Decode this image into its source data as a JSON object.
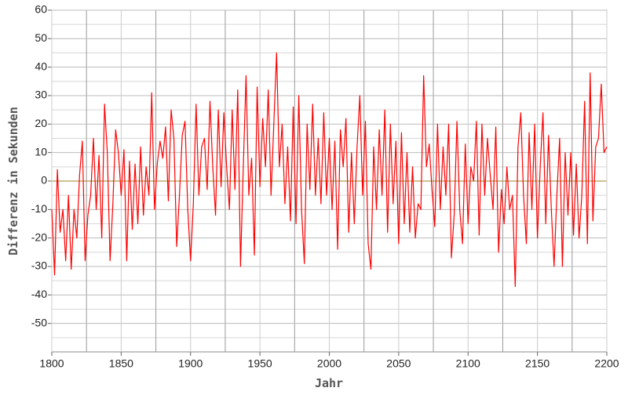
{
  "chart_data": {
    "type": "line",
    "x_label": "Jahr",
    "y_label": "Differenz in Sekunden",
    "xlim": [
      1800,
      2200
    ],
    "xticks": [
      1800,
      1850,
      1900,
      1950,
      2000,
      2050,
      2100,
      2150,
      2200
    ],
    "xminor": [
      1825,
      1875,
      1925,
      1975,
      2025,
      2075,
      2125,
      2175
    ],
    "ylim": [
      -60,
      60
    ],
    "yticks": [
      60,
      50,
      40,
      30,
      20,
      10,
      0,
      -10,
      -20,
      -30,
      -40,
      -50
    ],
    "yminor": [
      55,
      45,
      35,
      25,
      15,
      5,
      -5,
      -15,
      -25,
      -35,
      -45,
      -55
    ],
    "grid": true,
    "zero_line_color": "#a08020",
    "series": [
      {
        "color": "#ff0000",
        "x": [
          1800,
          1802,
          1804,
          1806,
          1808,
          1810,
          1812,
          1814,
          1816,
          1818,
          1820,
          1822,
          1824,
          1826,
          1828,
          1830,
          1832,
          1834,
          1836,
          1838,
          1840,
          1842,
          1844,
          1846,
          1848,
          1850,
          1852,
          1854,
          1856,
          1858,
          1860,
          1862,
          1864,
          1866,
          1868,
          1870,
          1872,
          1874,
          1876,
          1878,
          1880,
          1882,
          1884,
          1886,
          1888,
          1890,
          1892,
          1894,
          1896,
          1898,
          1900,
          1902,
          1904,
          1906,
          1908,
          1910,
          1912,
          1914,
          1916,
          1918,
          1920,
          1922,
          1924,
          1926,
          1928,
          1930,
          1932,
          1934,
          1936,
          1938,
          1940,
          1942,
          1944,
          1946,
          1948,
          1950,
          1952,
          1954,
          1956,
          1958,
          1960,
          1962,
          1964,
          1966,
          1968,
          1970,
          1972,
          1974,
          1976,
          1978,
          1980,
          1982,
          1984,
          1986,
          1988,
          1990,
          1992,
          1994,
          1996,
          1998,
          2000,
          2002,
          2004,
          2006,
          2008,
          2010,
          2012,
          2014,
          2016,
          2018,
          2020,
          2022,
          2024,
          2026,
          2028,
          2030,
          2032,
          2034,
          2036,
          2038,
          2040,
          2042,
          2044,
          2046,
          2048,
          2050,
          2052,
          2054,
          2056,
          2058,
          2060,
          2062,
          2064,
          2066,
          2068,
          2070,
          2072,
          2074,
          2076,
          2078,
          2080,
          2082,
          2084,
          2086,
          2088,
          2090,
          2092,
          2094,
          2096,
          2098,
          2100,
          2102,
          2104,
          2106,
          2108,
          2110,
          2112,
          2114,
          2116,
          2118,
          2120,
          2122,
          2124,
          2126,
          2128,
          2130,
          2132,
          2134,
          2136,
          2138,
          2140,
          2142,
          2144,
          2146,
          2148,
          2150,
          2152,
          2154,
          2156,
          2158,
          2160,
          2162,
          2164,
          2166,
          2168,
          2170,
          2172,
          2174,
          2176,
          2178,
          2180,
          2182,
          2184,
          2186,
          2188,
          2190,
          2192,
          2194,
          2196,
          2198,
          2200
        ],
        "values": [
          -10,
          -33,
          4,
          -18,
          -10,
          -28,
          -5,
          -31,
          -10,
          -20,
          2,
          14,
          -28,
          -12,
          -5,
          15,
          -10,
          9,
          -20,
          27,
          10,
          -28,
          -8,
          18,
          10,
          -5,
          11,
          -28,
          7,
          -17,
          6,
          -15,
          12,
          -12,
          5,
          -5,
          31,
          -10,
          6,
          14,
          8,
          19,
          -7,
          25,
          15,
          -23,
          -5,
          16,
          21,
          -10,
          -28,
          -8,
          27,
          -5,
          12,
          15,
          -3,
          28,
          5,
          -12,
          25,
          -2,
          24,
          5,
          -10,
          25,
          -3,
          32,
          -30,
          5,
          37,
          -5,
          8,
          -26,
          33,
          -2,
          22,
          5,
          32,
          -5,
          20,
          45,
          5,
          20,
          -8,
          12,
          -14,
          26,
          -15,
          30,
          -10,
          -29,
          20,
          -3,
          27,
          -5,
          15,
          -8,
          24,
          -5,
          15,
          -10,
          14,
          -24,
          18,
          5,
          22,
          -18,
          10,
          -15,
          12,
          30,
          -5,
          21,
          -22,
          -31,
          12,
          -10,
          18,
          -5,
          25,
          -18,
          20,
          -8,
          14,
          -22,
          17,
          -15,
          10,
          -18,
          5,
          -20,
          -8,
          -10,
          37,
          5,
          13,
          -3,
          -16,
          20,
          -10,
          12,
          -5,
          20,
          -27,
          -12,
          21,
          -10,
          -22,
          13,
          -15,
          5,
          0,
          21,
          -19,
          20,
          -5,
          15,
          2,
          -10,
          19,
          -25,
          -3,
          -15,
          5,
          -10,
          -5,
          -37,
          12,
          24,
          -5,
          -22,
          17,
          -10,
          20,
          -20,
          5,
          24,
          -15,
          16,
          -10,
          -30,
          -5,
          15,
          -30,
          10,
          -12,
          10,
          -19,
          6,
          -20,
          -5,
          28,
          -22,
          38,
          -14,
          12,
          15,
          34,
          10,
          12
        ]
      }
    ]
  }
}
